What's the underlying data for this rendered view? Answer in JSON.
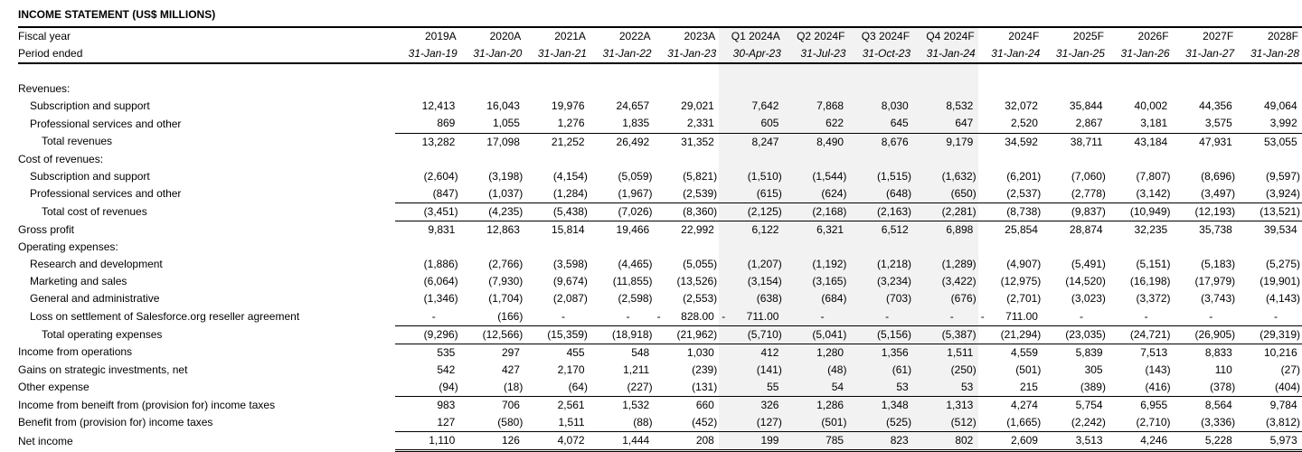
{
  "title": "INCOME STATEMENT (US$ MILLIONS)",
  "colors": {
    "shade_band": "#f2f2f2",
    "text": "#000000",
    "background": "#ffffff"
  },
  "header": {
    "fiscal_year_label": "Fiscal year",
    "period_ended_label": "Period ended",
    "columns": [
      {
        "year": "2019A",
        "period": "31-Jan-19",
        "shaded": false
      },
      {
        "year": "2020A",
        "period": "31-Jan-20",
        "shaded": false
      },
      {
        "year": "2021A",
        "period": "31-Jan-21",
        "shaded": false
      },
      {
        "year": "2022A",
        "period": "31-Jan-22",
        "shaded": false
      },
      {
        "year": "2023A",
        "period": "31-Jan-23",
        "shaded": false
      },
      {
        "year": "Q1 2024A",
        "period": "30-Apr-23",
        "shaded": true
      },
      {
        "year": "Q2 2024F",
        "period": "31-Jul-23",
        "shaded": true
      },
      {
        "year": "Q3 2024F",
        "period": "31-Oct-23",
        "shaded": true
      },
      {
        "year": "Q4 2024F",
        "period": "31-Jan-24",
        "shaded": true
      },
      {
        "year": "2024F",
        "period": "31-Jan-24",
        "shaded": false
      },
      {
        "year": "2025F",
        "period": "31-Jan-25",
        "shaded": false
      },
      {
        "year": "2026F",
        "period": "31-Jan-26",
        "shaded": false
      },
      {
        "year": "2027F",
        "period": "31-Jan-27",
        "shaded": false
      },
      {
        "year": "2028F",
        "period": "31-Jan-28",
        "shaded": false
      }
    ]
  },
  "rows": [
    {
      "label": "",
      "indent": 0,
      "values": null
    },
    {
      "label": "Revenues:",
      "indent": 0,
      "values": null
    },
    {
      "label": "Subscription and support",
      "indent": 1,
      "values": [
        "12,413",
        "16,043",
        "19,976",
        "24,657",
        "29,021",
        "7,642",
        "7,868",
        "8,030",
        "8,532",
        "32,072",
        "35,844",
        "40,002",
        "44,356",
        "49,064"
      ]
    },
    {
      "label": "Professional services and other",
      "indent": 1,
      "line_below": true,
      "values": [
        "869",
        "1,055",
        "1,276",
        "1,835",
        "2,331",
        "605",
        "622",
        "645",
        "647",
        "2,520",
        "2,867",
        "3,181",
        "3,575",
        "3,992"
      ]
    },
    {
      "label": "Total revenues",
      "indent": 2,
      "values": [
        "13,282",
        "17,098",
        "21,252",
        "26,492",
        "31,352",
        "8,247",
        "8,490",
        "8,676",
        "9,179",
        "34,592",
        "38,711",
        "43,184",
        "47,931",
        "53,055"
      ]
    },
    {
      "label": "Cost of revenues:",
      "indent": 0,
      "values": null
    },
    {
      "label": "Subscription and support",
      "indent": 1,
      "values": [
        "(2,604)",
        "(3,198)",
        "(4,154)",
        "(5,059)",
        "(5,821)",
        "(1,510)",
        "(1,544)",
        "(1,515)",
        "(1,632)",
        "(6,201)",
        "(7,060)",
        "(7,807)",
        "(8,696)",
        "(9,597)"
      ]
    },
    {
      "label": "Professional services and other",
      "indent": 1,
      "line_below": true,
      "values": [
        "(847)",
        "(1,037)",
        "(1,284)",
        "(1,967)",
        "(2,539)",
        "(615)",
        "(624)",
        "(648)",
        "(650)",
        "(2,537)",
        "(2,778)",
        "(3,142)",
        "(3,497)",
        "(3,924)"
      ]
    },
    {
      "label": "Total cost of revenues",
      "indent": 2,
      "line_below": true,
      "values": [
        "(3,451)",
        "(4,235)",
        "(5,438)",
        "(7,026)",
        "(8,360)",
        "(2,125)",
        "(2,168)",
        "(2,163)",
        "(2,281)",
        "(8,738)",
        "(9,837)",
        "(10,949)",
        "(12,193)",
        "(13,521)"
      ]
    },
    {
      "label": "Gross profit",
      "indent": 0,
      "values": [
        "9,831",
        "12,863",
        "15,814",
        "19,466",
        "22,992",
        "6,122",
        "6,321",
        "6,512",
        "6,898",
        "25,854",
        "28,874",
        "32,235",
        "35,738",
        "39,534"
      ]
    },
    {
      "label": "Operating expenses:",
      "indent": 0,
      "values": null
    },
    {
      "label": "Research and development",
      "indent": 1,
      "values": [
        "(1,886)",
        "(2,766)",
        "(3,598)",
        "(4,465)",
        "(5,055)",
        "(1,207)",
        "(1,192)",
        "(1,218)",
        "(1,289)",
        "(4,907)",
        "(5,491)",
        "(5,151)",
        "(5,183)",
        "(5,275)"
      ]
    },
    {
      "label": "Marketing and sales",
      "indent": 1,
      "values": [
        "(6,064)",
        "(7,930)",
        "(9,674)",
        "(11,855)",
        "(13,526)",
        "(3,154)",
        "(3,165)",
        "(3,234)",
        "(3,422)",
        "(12,975)",
        "(14,520)",
        "(16,198)",
        "(17,979)",
        "(19,901)"
      ]
    },
    {
      "label": "General and administrative",
      "indent": 1,
      "values": [
        "(1,346)",
        "(1,704)",
        "(2,087)",
        "(2,598)",
        "(2,553)",
        "(638)",
        "(684)",
        "(703)",
        "(676)",
        "(2,701)",
        "(3,023)",
        "(3,372)",
        "(3,743)",
        "(4,143)"
      ]
    },
    {
      "label": "Loss on settlement of Salesforce.org reseller agreement",
      "indent": 1,
      "line_below": true,
      "values": [
        "-",
        "(166)",
        "-",
        "-",
        "-\t828.00",
        "-\t711.00",
        "-",
        "-",
        "-",
        "-\t711.00",
        "-",
        "-",
        "-",
        "-"
      ]
    },
    {
      "label": "Total operating expenses",
      "indent": 2,
      "line_below": true,
      "values": [
        "(9,296)",
        "(12,566)",
        "(15,359)",
        "(18,918)",
        "(21,962)",
        "(5,710)",
        "(5,041)",
        "(5,156)",
        "(5,387)",
        "(21,294)",
        "(23,035)",
        "(24,721)",
        "(26,905)",
        "(29,319)"
      ]
    },
    {
      "label": "Income from operations",
      "indent": 0,
      "values": [
        "535",
        "297",
        "455",
        "548",
        "1,030",
        "412",
        "1,280",
        "1,356",
        "1,511",
        "4,559",
        "5,839",
        "7,513",
        "8,833",
        "10,216"
      ]
    },
    {
      "label": "Gains on strategic investments, net",
      "indent": 0,
      "values": [
        "542",
        "427",
        "2,170",
        "1,211",
        "(239)",
        "(141)",
        "(48)",
        "(61)",
        "(250)",
        "(501)",
        "305",
        "(143)",
        "110",
        "(27)"
      ]
    },
    {
      "label": "Other expense",
      "indent": 0,
      "line_below": true,
      "values": [
        "(94)",
        "(18)",
        "(64)",
        "(227)",
        "(131)",
        "55",
        "54",
        "53",
        "53",
        "215",
        "(389)",
        "(416)",
        "(378)",
        "(404)"
      ]
    },
    {
      "label": "Income from beneift from (provision for) income taxes",
      "indent": 0,
      "values": [
        "983",
        "706",
        "2,561",
        "1,532",
        "660",
        "326",
        "1,286",
        "1,348",
        "1,313",
        "4,274",
        "5,754",
        "6,955",
        "8,564",
        "9,784"
      ]
    },
    {
      "label": "Benefit from (provision for) income taxes",
      "indent": 0,
      "line_below": true,
      "values": [
        "127",
        "(580)",
        "1,511",
        "(88)",
        "(452)",
        "(127)",
        "(501)",
        "(525)",
        "(512)",
        "(1,665)",
        "(2,242)",
        "(2,710)",
        "(3,336)",
        "(3,812)"
      ]
    },
    {
      "label": "Net income",
      "indent": 0,
      "double_below": true,
      "values": [
        "1,110",
        "126",
        "4,072",
        "1,444",
        "208",
        "199",
        "785",
        "823",
        "802",
        "2,609",
        "3,513",
        "4,246",
        "5,228",
        "5,973"
      ]
    }
  ]
}
